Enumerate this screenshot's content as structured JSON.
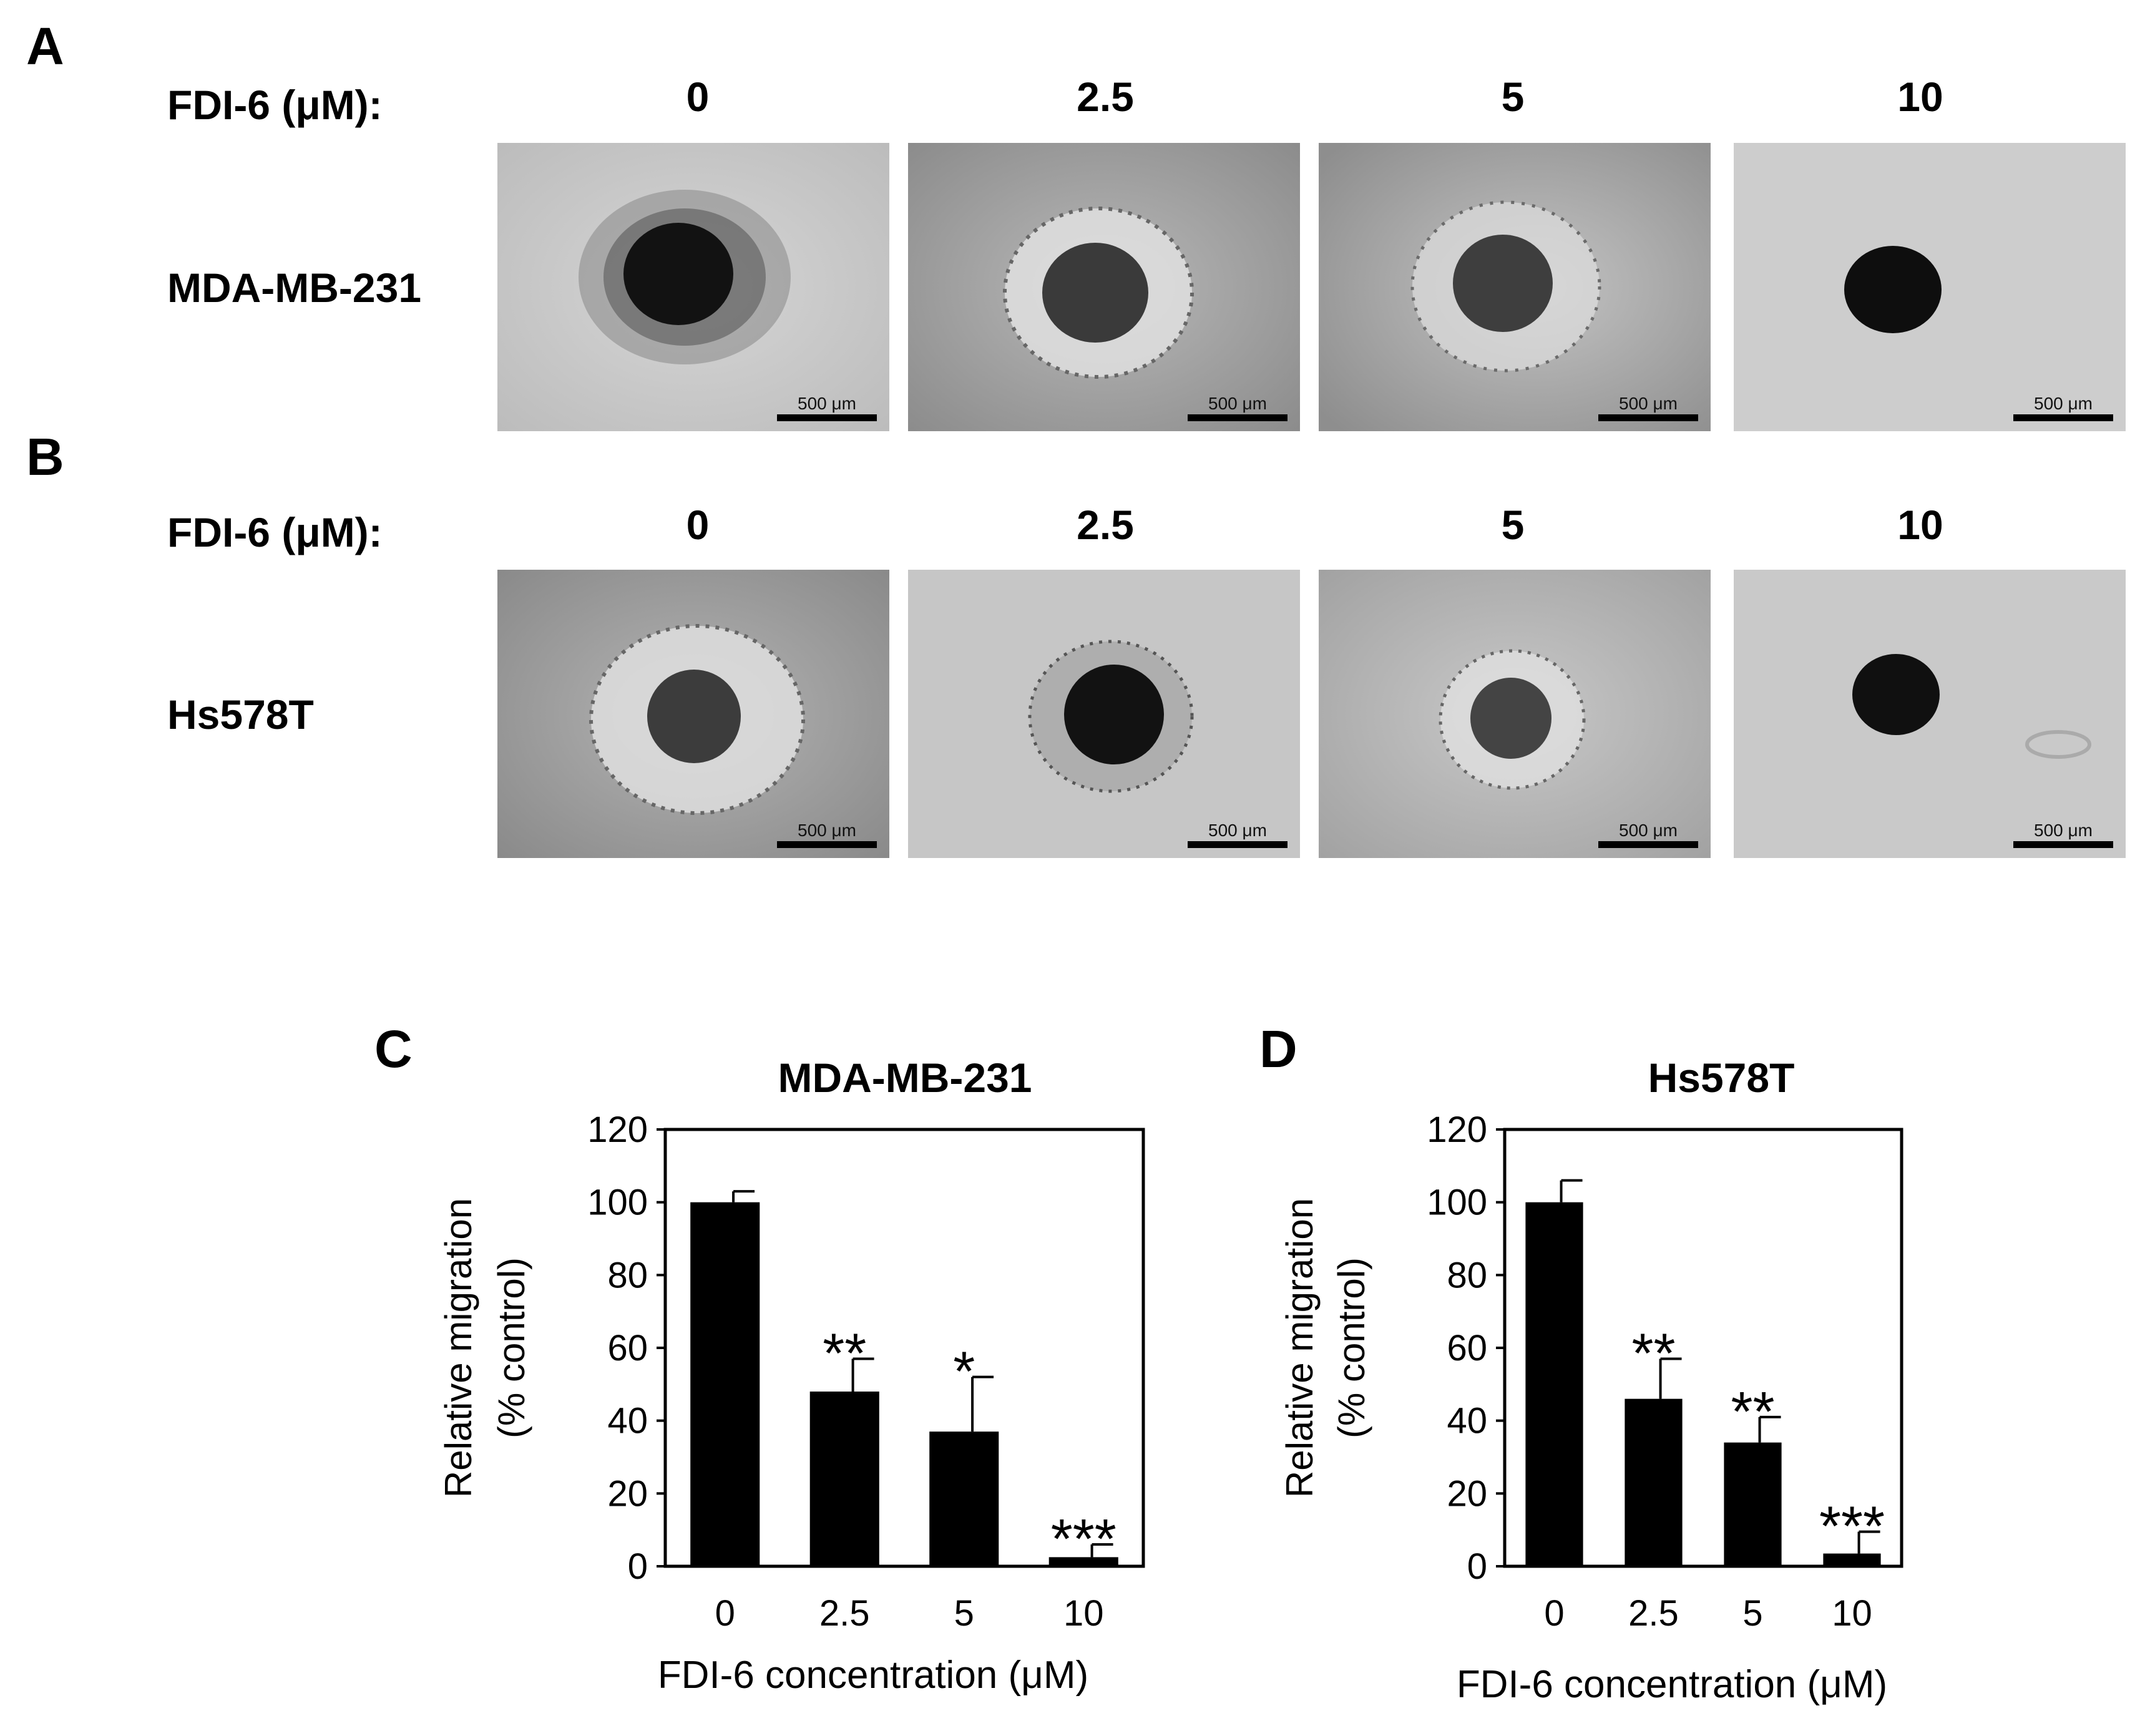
{
  "panels": {
    "A": {
      "letter": "A",
      "treatment_label": "FDI-6 (μM):",
      "concentrations": [
        "0",
        "2.5",
        "5",
        "10"
      ],
      "cell_line": "MDA-MB-231",
      "scale_bar_label": "500 μm"
    },
    "B": {
      "letter": "B",
      "treatment_label": "FDI-6 (μM):",
      "concentrations": [
        "0",
        "2.5",
        "5",
        "10"
      ],
      "cell_line": "Hs578T",
      "scale_bar_label": "500 μm"
    }
  },
  "colors": {
    "bar": "#000000",
    "image_bg_light": "#cfcfcf",
    "image_bg_dark": "#8a8a8a"
  },
  "chart_data": [
    {
      "panel_letter": "C",
      "type": "bar",
      "title": "MDA-MB-231",
      "categories": [
        "0",
        "2.5",
        "5",
        "10"
      ],
      "values": [
        100,
        48,
        37,
        2.5
      ],
      "errors": [
        3,
        9,
        15,
        3.5
      ],
      "significance": [
        "",
        "**",
        "*",
        "***"
      ],
      "xlabel": "FDI-6 concentration (μM)",
      "ylabel": [
        "Relative migration",
        "(% control)"
      ],
      "yticks": [
        "0",
        "20",
        "40",
        "60",
        "80",
        "100",
        "120"
      ],
      "ylim": [
        0,
        120
      ],
      "grid": false,
      "legend": "none"
    },
    {
      "panel_letter": "D",
      "type": "bar",
      "title": "Hs578T",
      "categories": [
        "0",
        "2.5",
        "5",
        "10"
      ],
      "values": [
        100,
        46,
        34,
        3.5
      ],
      "errors": [
        6,
        11,
        7,
        6
      ],
      "significance": [
        "",
        "**",
        "**",
        "***"
      ],
      "xlabel": "FDI-6 concentration (μM)",
      "ylabel": [
        "Relative migration",
        "(% control)"
      ],
      "yticks": [
        "0",
        "20",
        "40",
        "60",
        "80",
        "100",
        "120"
      ],
      "ylim": [
        0,
        120
      ],
      "grid": false,
      "legend": "none"
    }
  ]
}
